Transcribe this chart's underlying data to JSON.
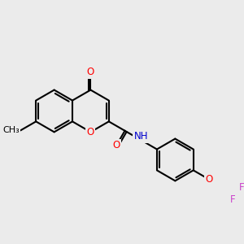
{
  "bg_color": "#ebebeb",
  "bond_color": "#000000",
  "bond_width": 1.5,
  "atom_colors": {
    "O": "#ff0000",
    "N": "#0000cd",
    "F": "#cc44cc",
    "C": "#000000"
  },
  "font_size": 8.5,
  "figsize": [
    3.0,
    3.0
  ],
  "dpi": 100
}
